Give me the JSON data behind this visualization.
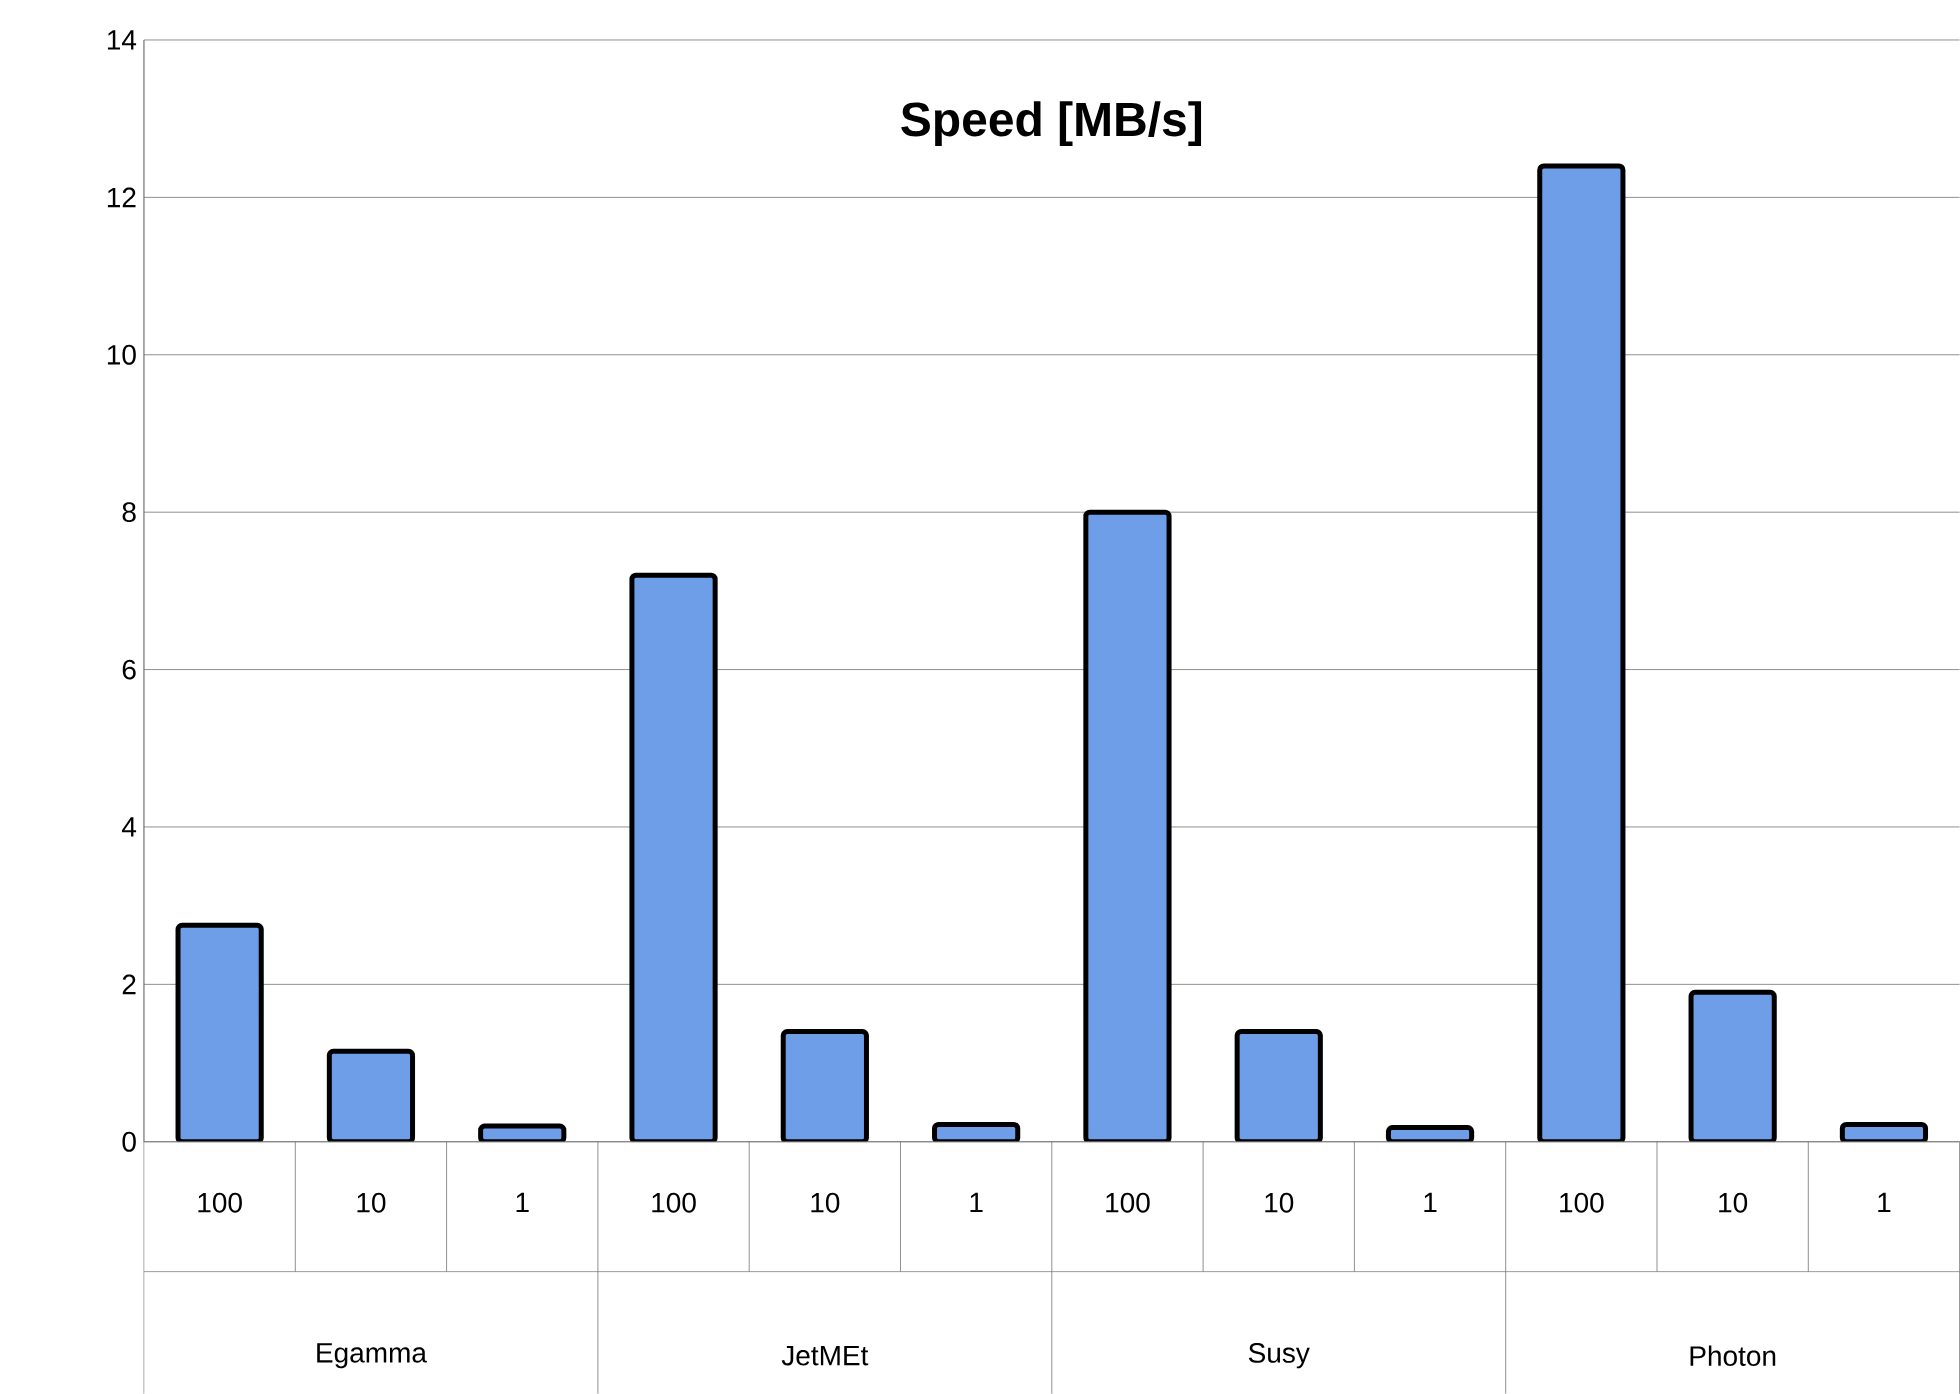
{
  "chart_data": {
    "type": "bar",
    "title": "Speed [MB/s]",
    "categories": [
      "100",
      "10",
      "1",
      "100",
      "10",
      "1",
      "100",
      "10",
      "1",
      "100",
      "10",
      "1"
    ],
    "values": [
      2.75,
      1.15,
      0.2,
      7.2,
      1.4,
      0.22,
      8.0,
      1.4,
      0.18,
      12.4,
      1.9,
      0.22
    ],
    "color": "#6f9ee8",
    "ylim": [
      0,
      14
    ],
    "yticks": [
      0,
      2,
      4,
      6,
      8,
      10,
      12,
      14
    ],
    "grid": "y",
    "annotations": [
      "Egamma",
      "JetMEt",
      "Susy",
      "Photon"
    ]
  }
}
